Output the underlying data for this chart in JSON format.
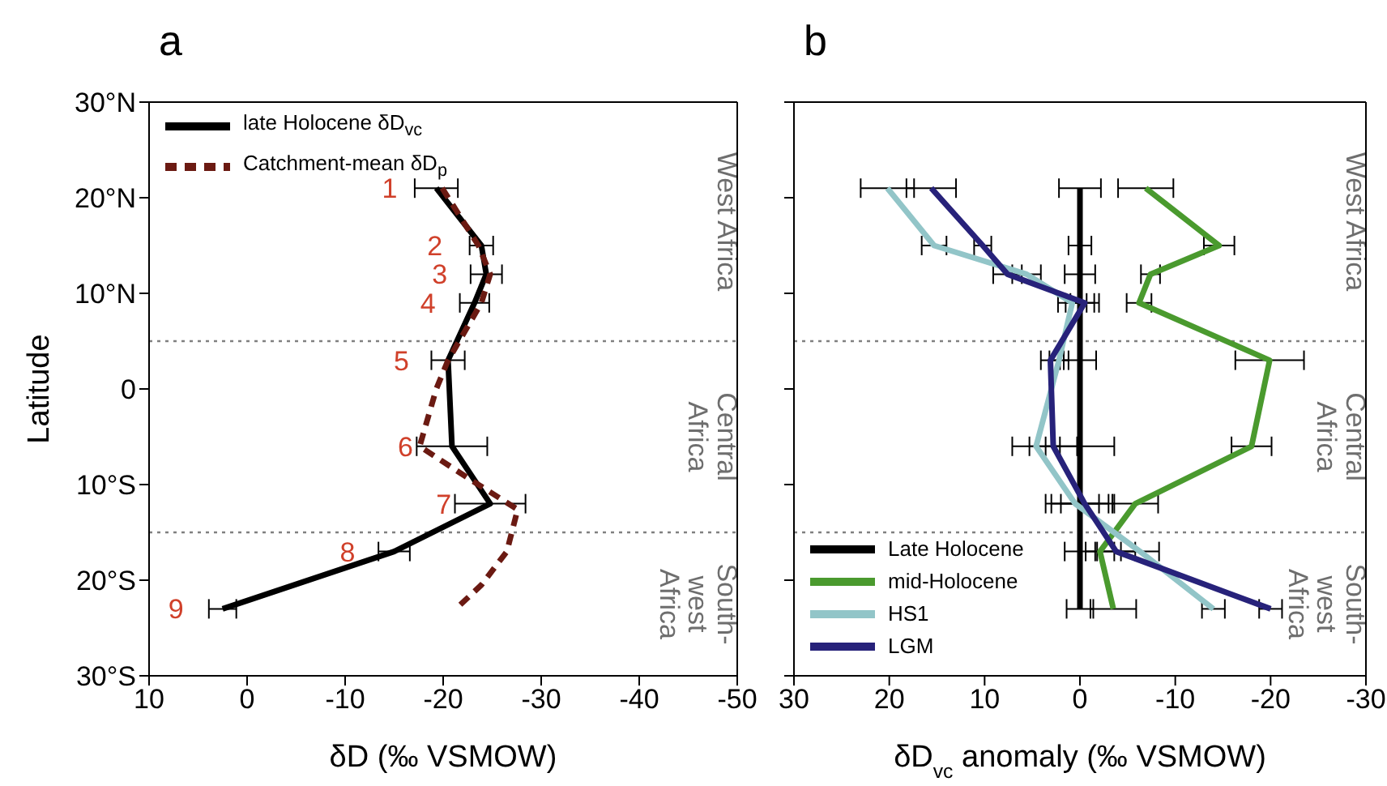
{
  "chart_data": [
    {
      "type": "line",
      "title": "a",
      "xlabel": "δD (‰ VSMOW)",
      "ylabel": "Latitude",
      "xlim": [
        10,
        -50
      ],
      "xticks": [
        10,
        0,
        -10,
        -20,
        -30,
        -40,
        -50
      ],
      "ylim": [
        -30,
        30
      ],
      "yticks": [
        {
          "value": 30,
          "label": "30°N"
        },
        {
          "value": 20,
          "label": "20°N"
        },
        {
          "value": 10,
          "label": "10°N"
        },
        0,
        {
          "value": -10,
          "label": "10°S"
        },
        {
          "value": -20,
          "label": "20°S"
        },
        {
          "value": -30,
          "label": "30°S"
        }
      ],
      "legend": "top left",
      "ref_lines": [
        {
          "axis": "y",
          "value": 5,
          "line_style": "dotted",
          "color": "#808080"
        },
        {
          "axis": "y",
          "value": -15,
          "line_style": "dotted",
          "color": "#808080"
        }
      ],
      "annotations": [
        "West Africa",
        "Central Africa",
        "South-west Africa",
        {
          "text": "1",
          "x": -19.3,
          "y": 21
        },
        {
          "text": "2",
          "x": -23.9,
          "y": 15
        },
        {
          "text": "3",
          "x": -24.4,
          "y": 12
        },
        {
          "text": "4",
          "x": -23.2,
          "y": 9
        },
        {
          "text": "5",
          "x": -20.5,
          "y": 3
        },
        {
          "text": "6",
          "x": -20.9,
          "y": -6
        },
        {
          "text": "7",
          "x": -24.8,
          "y": -12
        },
        {
          "text": "8",
          "x": -15,
          "y": -17
        },
        {
          "text": "9",
          "x": 2.5,
          "y": -23
        }
      ],
      "series": [
        {
          "name": "late Holocene δD$_{vc}$",
          "color": "#000000",
          "line_style": "solid",
          "x": [
            -19.3,
            -23.9,
            -24.4,
            -23.2,
            -20.5,
            -20.9,
            -24.8,
            -15,
            2.5
          ],
          "values": [
            21,
            15,
            12,
            9,
            3,
            -6,
            -12,
            -17,
            -23
          ],
          "xerrors": [
            2.2,
            1.2,
            1.6,
            1.5,
            1.7,
            3.6,
            3.6,
            1.6,
            1.4
          ]
        },
        {
          "name": "Catchment-mean δD$_{p}$",
          "color": "#6b1a12",
          "line_style": "dashed",
          "x": [
            -19.9,
            -23.6,
            -24.8,
            -23.9,
            -20.5,
            -19.3,
            -17.6,
            -22.8,
            -27.6,
            -26.5,
            -23.9,
            -21.3
          ],
          "values": [
            21,
            15,
            12,
            9,
            3,
            0,
            -6,
            -9.5,
            -12.6,
            -17,
            -20.5,
            -23
          ]
        }
      ]
    },
    {
      "type": "line",
      "title": "b",
      "xlabel": "δD$_{vc}$ anomaly (‰ VSMOW)",
      "xlim": [
        30,
        -30
      ],
      "xticks": [
        30,
        20,
        10,
        0,
        -10,
        -20,
        -30
      ],
      "ylim": [
        -30,
        30
      ],
      "yticks": [
        30,
        20,
        10,
        0,
        -10,
        -20,
        -30
      ],
      "tick_labels": "x",
      "legend": "bottom left",
      "ref_lines": [
        {
          "axis": "y",
          "value": 5,
          "line_style": "dotted",
          "color": "#808080"
        },
        {
          "axis": "y",
          "value": -15,
          "line_style": "dotted",
          "color": "#808080"
        }
      ],
      "annotations": [
        "West Africa",
        "Central Africa",
        "South-west Africa"
      ],
      "series": [
        {
          "name": "Late Holocene",
          "color": "#000000",
          "line_style": "solid",
          "x": [
            0,
            0,
            0,
            0,
            0,
            0,
            0,
            0,
            0
          ],
          "values": [
            21,
            15,
            12,
            9,
            3,
            -6,
            -12,
            -17,
            -23
          ],
          "xerrors": [
            2.2,
            1.2,
            1.6,
            1.5,
            1.7,
            3.6,
            3.6,
            1.6,
            1.4
          ]
        },
        {
          "name": "mid-Holocene",
          "color": "#4a9a2e",
          "line_style": "solid",
          "x": [
            -6.9,
            -14.6,
            -7.4,
            -6.2,
            -19.9,
            -18,
            -5.8,
            -2.1,
            -3.5
          ],
          "values": [
            21,
            15,
            12,
            9,
            3,
            -6,
            -12,
            -17,
            -23
          ],
          "xerrors": [
            2.9,
            1.6,
            1,
            1.3,
            3.6,
            2.1,
            2.4,
            1.5,
            2.4
          ]
        },
        {
          "name": "HS1",
          "color": "#92c5c8",
          "line_style": "solid",
          "x": [
            20.2,
            15.3,
            5.6,
            0.8,
            2.2,
            4.6,
            0.5,
            -6.3,
            -14
          ],
          "values": [
            21,
            15,
            12,
            9,
            3,
            -6,
            -12,
            -17,
            -23
          ],
          "xerrors": [
            2.8,
            1.3,
            1.5,
            1.5,
            1,
            2.5,
            2.5,
            2,
            1.2
          ]
        },
        {
          "name": "LGM",
          "color": "#27227a",
          "line_style": "solid",
          "x": [
            15.6,
            10.2,
            7.6,
            -0.5,
            3.1,
            2.8,
            -0.5,
            -3.8,
            -20
          ],
          "values": [
            21,
            15,
            12,
            9,
            3,
            -6,
            -12,
            -17,
            -23
          ],
          "xerrors": [
            2.6,
            0.9,
            1.5,
            1.5,
            1,
            2.5,
            2.5,
            2,
            1.2
          ]
        }
      ]
    }
  ]
}
